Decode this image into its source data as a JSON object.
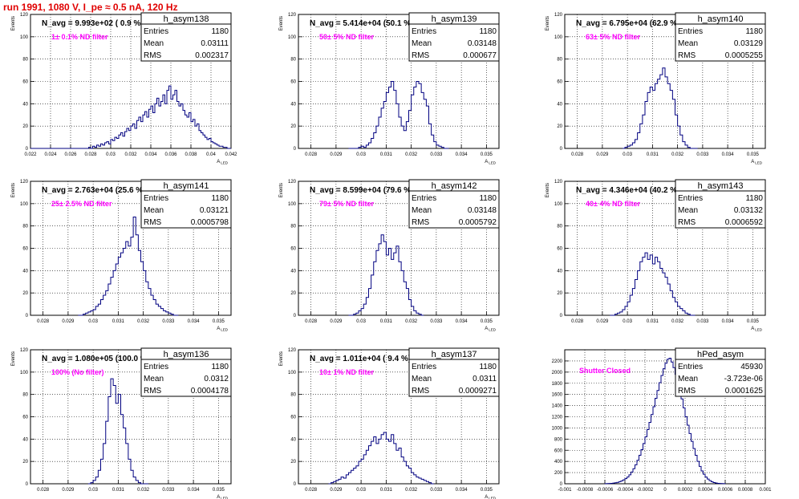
{
  "page_title": "run 1991,  1080 V, I_pe ≈ 0.5 nA, 120 Hz",
  "colors": {
    "hist_line": "#000080",
    "annotation": "#ff00ff",
    "title": "#e00000",
    "grid": "#000000"
  },
  "chart_data": [
    {
      "type": "histogram",
      "hist_name": "h_asym138",
      "ylabel": "Events",
      "xlabel": "A_LED",
      "nav_text": "N_avg = 9.993e+02 ( 0.9 %)",
      "annotation": "1± 0.1% ND filter",
      "stats": {
        "entries_label": "Entries",
        "entries": "1180",
        "mean_label": "Mean",
        "mean": "0.03111",
        "rms_label": "RMS",
        "rms": "0.002317"
      },
      "xlim": [
        0.022,
        0.042
      ],
      "ylim": [
        0,
        120
      ],
      "xticks": [
        "0.022",
        "0.024",
        "0.026",
        "0.028",
        "0.03",
        "0.032",
        "0.034",
        "0.036",
        "0.038",
        "0.04",
        "0.042"
      ],
      "yticks": [
        "0",
        "20",
        "40",
        "60",
        "80",
        "100",
        "120"
      ],
      "binning": {
        "x0": 0.022,
        "width": 0.0002
      },
      "counts": [
        0,
        0,
        0,
        0,
        0,
        0,
        0,
        0,
        0,
        0,
        0,
        0,
        0,
        0,
        0,
        0,
        0,
        0,
        0,
        0,
        0,
        0,
        0,
        0,
        0,
        0,
        0,
        0,
        0,
        1,
        0,
        2,
        1,
        3,
        2,
        4,
        3,
        5,
        6,
        4,
        8,
        7,
        10,
        9,
        12,
        14,
        11,
        15,
        18,
        16,
        20,
        22,
        18,
        25,
        28,
        24,
        30,
        33,
        28,
        35,
        38,
        32,
        40,
        45,
        38,
        42,
        48,
        40,
        52,
        56,
        44,
        48,
        52,
        42,
        38,
        40,
        34,
        30,
        28,
        32,
        24,
        26,
        20,
        22,
        16,
        14,
        12,
        10,
        8,
        9,
        6,
        5,
        4,
        3,
        2,
        2,
        1,
        1,
        0,
        0
      ]
    },
    {
      "type": "histogram",
      "hist_name": "h_asym139",
      "ylabel": "Events",
      "xlabel": "A_LED",
      "nav_text": "N_avg = 5.414e+04 (50.1 %)",
      "annotation": "50± 5% ND filter",
      "stats": {
        "entries_label": "Entries",
        "entries": "1180",
        "mean_label": "Mean",
        "mean": "0.03148",
        "rms_label": "RMS",
        "rms": "0.000677"
      },
      "xlim": [
        0.0275,
        0.0355
      ],
      "ylim": [
        0,
        120
      ],
      "xticks": [
        "0.028",
        "0.029",
        "0.03",
        "0.031",
        "0.032",
        "0.033",
        "0.034",
        "0.035"
      ],
      "yticks": [
        "0",
        "20",
        "40",
        "60",
        "80",
        "100",
        "120"
      ],
      "binning": {
        "x0": 0.0295,
        "width": 0.0001
      },
      "counts": [
        0,
        0,
        0,
        0,
        1,
        2,
        1,
        3,
        5,
        9,
        14,
        20,
        28,
        36,
        42,
        50,
        55,
        60,
        52,
        40,
        28,
        20,
        16,
        24,
        34,
        48,
        55,
        60,
        58,
        50,
        44,
        38,
        22,
        12,
        6,
        3,
        2,
        1,
        0,
        0
      ]
    },
    {
      "type": "histogram",
      "hist_name": "h_asym140",
      "ylabel": "Events",
      "xlabel": "A_LED",
      "nav_text": "N_avg = 6.795e+04 (62.9 %)",
      "annotation": "63± 5% ND filter",
      "stats": {
        "entries_label": "Entries",
        "entries": "1180",
        "mean_label": "Mean",
        "mean": "0.03129",
        "rms_label": "RMS",
        "rms": "0.0005255"
      },
      "xlim": [
        0.0275,
        0.0355
      ],
      "ylim": [
        0,
        120
      ],
      "xticks": [
        "0.028",
        "0.029",
        "0.03",
        "0.031",
        "0.032",
        "0.033",
        "0.034",
        "0.035"
      ],
      "yticks": [
        "0",
        "20",
        "40",
        "60",
        "80",
        "100",
        "120"
      ],
      "binning": {
        "x0": 0.0298,
        "width": 0.0001
      },
      "counts": [
        0,
        1,
        2,
        3,
        5,
        8,
        14,
        22,
        30,
        42,
        50,
        55,
        52,
        58,
        62,
        66,
        72,
        64,
        58,
        52,
        44,
        30,
        20,
        12,
        6,
        3,
        1,
        0,
        0,
        0
      ]
    },
    {
      "type": "histogram",
      "hist_name": "h_asym141",
      "ylabel": "Events",
      "xlabel": "A_LED",
      "nav_text": "N_avg = 2.763e+04 (25.6 %)",
      "annotation": "25± 2.5% ND filter",
      "stats": {
        "entries_label": "Entries",
        "entries": "1180",
        "mean_label": "Mean",
        "mean": "0.03121",
        "rms_label": "RMS",
        "rms": "0.0005798"
      },
      "xlim": [
        0.0275,
        0.0355
      ],
      "ylim": [
        0,
        120
      ],
      "xticks": [
        "0.028",
        "0.029",
        "0.03",
        "0.031",
        "0.032",
        "0.033",
        "0.034",
        "0.035"
      ],
      "yticks": [
        "0",
        "20",
        "40",
        "60",
        "80",
        "100",
        "120"
      ],
      "binning": {
        "x0": 0.0294,
        "width": 0.0001
      },
      "counts": [
        0,
        0,
        1,
        2,
        3,
        4,
        5,
        8,
        10,
        14,
        18,
        22,
        28,
        34,
        40,
        46,
        52,
        56,
        60,
        66,
        62,
        70,
        88,
        72,
        58,
        48,
        40,
        30,
        24,
        18,
        14,
        10,
        8,
        6,
        4,
        3,
        2,
        1,
        0,
        0
      ]
    },
    {
      "type": "histogram",
      "hist_name": "h_asym142",
      "ylabel": "Events",
      "xlabel": "A_LED",
      "nav_text": "N_avg = 8.599e+04 (79.6 %)",
      "annotation": "79± 5% ND filter",
      "stats": {
        "entries_label": "Entries",
        "entries": "1180",
        "mean_label": "Mean",
        "mean": "0.03148",
        "rms_label": "RMS",
        "rms": "0.0005792"
      },
      "xlim": [
        0.0275,
        0.0355
      ],
      "ylim": [
        0,
        120
      ],
      "xticks": [
        "0.028",
        "0.029",
        "0.03",
        "0.031",
        "0.032",
        "0.033",
        "0.034",
        "0.035"
      ],
      "yticks": [
        "0",
        "20",
        "40",
        "60",
        "80",
        "100",
        "120"
      ],
      "binning": {
        "x0": 0.0295,
        "width": 0.0001
      },
      "counts": [
        0,
        0,
        1,
        2,
        4,
        6,
        10,
        16,
        24,
        36,
        48,
        58,
        64,
        72,
        66,
        54,
        60,
        50,
        56,
        62,
        48,
        40,
        30,
        24,
        14,
        8,
        4,
        2,
        1,
        0
      ]
    },
    {
      "type": "histogram",
      "hist_name": "h_asym143",
      "ylabel": "Events",
      "xlabel": "A_LED",
      "nav_text": "N_avg = 4.346e+04 (40.2 %)",
      "annotation": "40± 4% ND filter",
      "stats": {
        "entries_label": "Entries",
        "entries": "1180",
        "mean_label": "Mean",
        "mean": "0.03132",
        "rms_label": "RMS",
        "rms": "0.0006592"
      },
      "xlim": [
        0.0275,
        0.0355
      ],
      "ylim": [
        0,
        120
      ],
      "xticks": [
        "0.028",
        "0.029",
        "0.03",
        "0.031",
        "0.032",
        "0.033",
        "0.034",
        "0.035"
      ],
      "yticks": [
        "0",
        "20",
        "40",
        "60",
        "80",
        "100",
        "120"
      ],
      "binning": {
        "x0": 0.0293,
        "width": 0.0001
      },
      "counts": [
        0,
        0,
        1,
        2,
        3,
        5,
        8,
        12,
        18,
        24,
        32,
        40,
        48,
        52,
        56,
        50,
        54,
        46,
        52,
        48,
        42,
        38,
        34,
        28,
        22,
        16,
        12,
        8,
        6,
        4,
        2,
        1,
        0,
        0
      ]
    },
    {
      "type": "histogram",
      "hist_name": "h_asym136",
      "ylabel": "Events",
      "xlabel": "A_LED",
      "nav_text": "N_avg = 1.080e+05 (100.0 %)",
      "annotation": "100% (No filter)",
      "stats": {
        "entries_label": "Entries",
        "entries": "1180",
        "mean_label": "Mean",
        "mean": "0.0312",
        "rms_label": "RMS",
        "rms": "0.0004178"
      },
      "xlim": [
        0.0275,
        0.0355
      ],
      "ylim": [
        0,
        120
      ],
      "xticks": [
        "0.028",
        "0.029",
        "0.03",
        "0.031",
        "0.032",
        "0.033",
        "0.034",
        "0.035"
      ],
      "yticks": [
        "0",
        "20",
        "40",
        "60",
        "80",
        "100",
        "120"
      ],
      "binning": {
        "x0": 0.0298,
        "width": 0.0001
      },
      "counts": [
        0,
        1,
        3,
        6,
        12,
        22,
        36,
        56,
        78,
        94,
        88,
        72,
        80,
        62,
        50,
        36,
        22,
        12,
        6,
        3,
        1,
        0,
        0,
        0
      ]
    },
    {
      "type": "histogram",
      "hist_name": "h_asym137",
      "ylabel": "Events",
      "xlabel": "A_LED",
      "nav_text": "N_avg = 1.011e+04 ( 9.4 %)",
      "annotation": "10± 1% ND filter",
      "stats": {
        "entries_label": "Entries",
        "entries": "1180",
        "mean_label": "Mean",
        "mean": "0.0311",
        "rms_label": "RMS",
        "rms": "0.0009271"
      },
      "xlim": [
        0.0275,
        0.0355
      ],
      "ylim": [
        0,
        120
      ],
      "xticks": [
        "0.028",
        "0.029",
        "0.03",
        "0.031",
        "0.032",
        "0.033",
        "0.034",
        "0.035"
      ],
      "yticks": [
        "0",
        "20",
        "40",
        "60",
        "80",
        "100",
        "120"
      ],
      "binning": {
        "x0": 0.0287,
        "width": 0.0001
      },
      "counts": [
        0,
        1,
        2,
        3,
        4,
        6,
        5,
        8,
        10,
        12,
        14,
        16,
        20,
        22,
        26,
        30,
        34,
        38,
        42,
        36,
        40,
        44,
        46,
        40,
        38,
        44,
        36,
        30,
        32,
        24,
        20,
        16,
        14,
        10,
        8,
        6,
        5,
        4,
        3,
        2,
        1,
        0
      ]
    },
    {
      "type": "histogram",
      "hist_name": "hPed_asym",
      "ylabel": "",
      "xlabel": "",
      "nav_text": "",
      "annotation": "Shutter Closed",
      "stats": {
        "entries_label": "Entries",
        "entries": "45930",
        "mean_label": "Mean",
        "mean": "-3.723e-06",
        "rms_label": "RMS",
        "rms": "0.0001625"
      },
      "xlim": [
        -0.001,
        0.001
      ],
      "ylim": [
        0,
        2400
      ],
      "xticks": [
        "-0.001",
        "-0.0008",
        "-0.0006",
        "-0.0004",
        "-0.0002",
        "0",
        "0.0002",
        "0.0004",
        "0.0006",
        "0.0008",
        "0.001"
      ],
      "yticks": [
        "0",
        "200",
        "400",
        "600",
        "800",
        "1000",
        "1200",
        "1400",
        "1600",
        "1800",
        "2000",
        "2200"
      ],
      "binning": {
        "x0": -0.0006,
        "width": 2e-05
      },
      "counts": [
        2,
        3,
        5,
        8,
        12,
        18,
        26,
        38,
        52,
        70,
        92,
        120,
        160,
        210,
        270,
        340,
        420,
        510,
        610,
        720,
        840,
        970,
        1100,
        1240,
        1380,
        1530,
        1670,
        1810,
        1940,
        2060,
        2160,
        2230,
        2250,
        2180,
        2080,
        1960,
        1820,
        1670,
        1520,
        1360,
        1200,
        1050,
        900,
        760,
        630,
        510,
        400,
        310,
        230,
        170,
        120,
        84,
        56,
        36,
        22,
        14,
        8,
        5,
        3,
        2
      ]
    }
  ]
}
